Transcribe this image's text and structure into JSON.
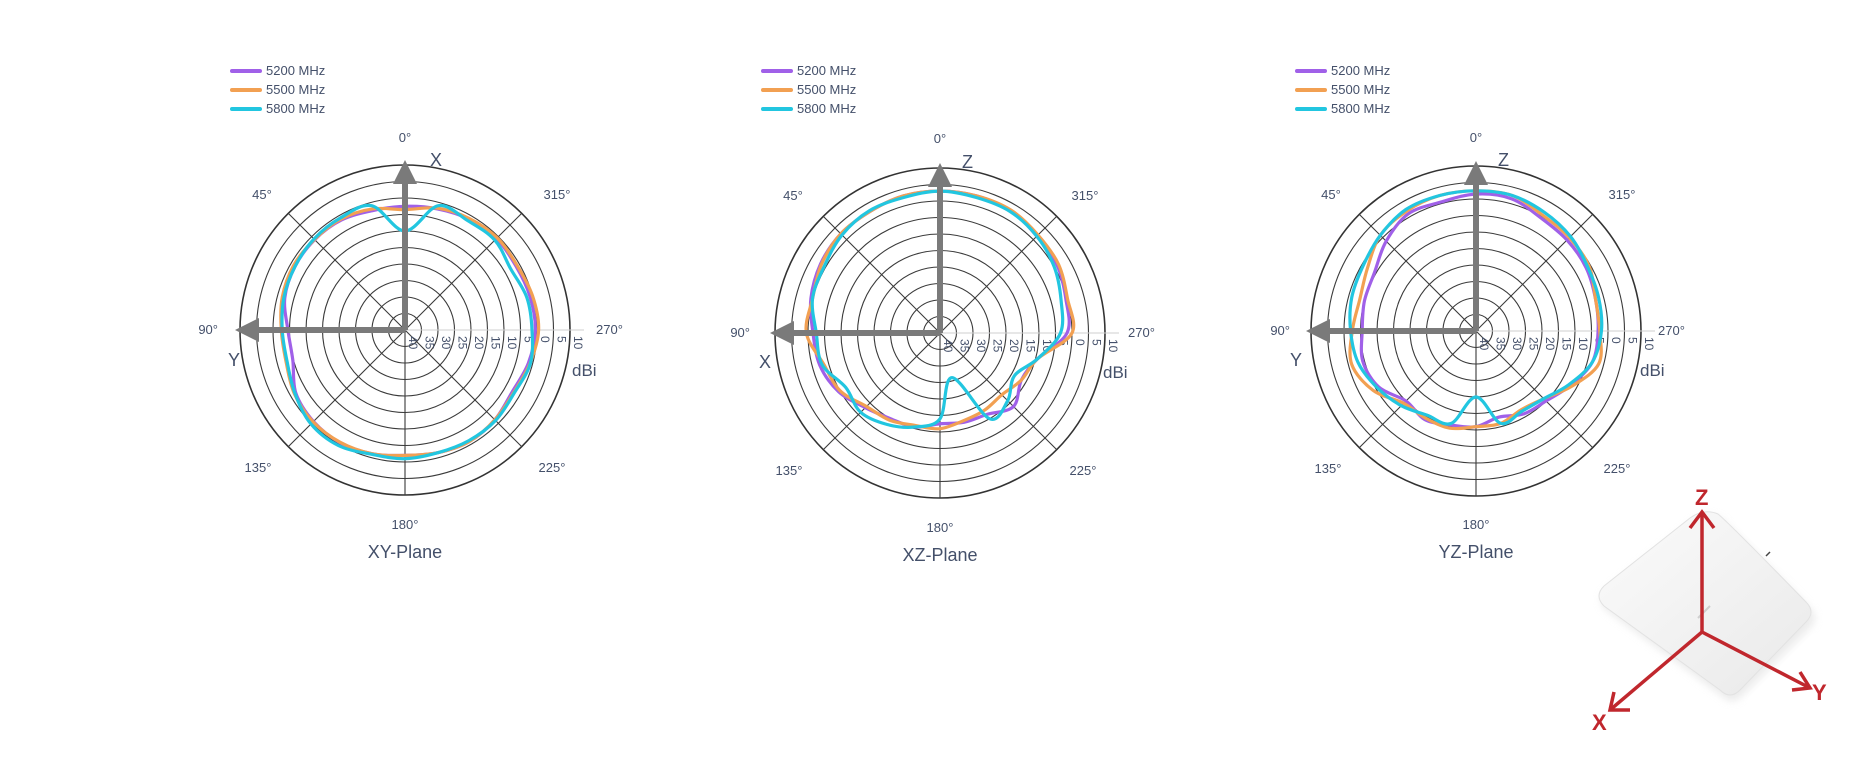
{
  "legend": [
    {
      "name": "5200 MHz",
      "color": "#a060e8"
    },
    {
      "name": "5500 MHz",
      "color": "#f2a052"
    },
    {
      "name": "5800 MHz",
      "color": "#22c6e0"
    }
  ],
  "angle_labels": [
    "0°",
    "315°",
    "270°",
    "225°",
    "180°",
    "135°",
    "90°",
    "45°"
  ],
  "radial_labels": [
    "10",
    "5",
    "0",
    "5",
    "10",
    "15",
    "20",
    "25",
    "30",
    "35",
    "40"
  ],
  "unit": "dBi",
  "coordinate_diagram": {
    "labels": [
      "Z",
      "Y",
      "X"
    ],
    "color": "#c0272d"
  },
  "chart_data": [
    {
      "type": "polar-line",
      "title": "XY-Plane",
      "up_axis": "X",
      "left_axis": "Y",
      "r_unit": "dBi",
      "r_range": [
        -40,
        10
      ],
      "r_ticks": [
        10,
        5,
        0,
        -5,
        -10,
        -15,
        -20,
        -25,
        -30,
        -35,
        -40
      ],
      "theta_direction": "counterclockwise, 0° at top",
      "theta": [
        0,
        15,
        30,
        45,
        60,
        75,
        90,
        105,
        120,
        135,
        150,
        165,
        180,
        195,
        210,
        225,
        240,
        255,
        270,
        285,
        300,
        315,
        330,
        345
      ],
      "series": [
        {
          "name": "5200 MHz",
          "values": [
            -2.5,
            -2.5,
            -1.5,
            -1.3,
            -1.5,
            -2.3,
            -4.5,
            -4.8,
            -1.8,
            -0.8,
            -0.6,
            -1.2,
            -2,
            -1.5,
            -1,
            -1.5,
            -2.5,
            -1.3,
            -0.5,
            -0.8,
            -1.2,
            -0.8,
            -1.2,
            -2
          ]
        },
        {
          "name": "5500 MHz",
          "values": [
            -3.5,
            -2.0,
            -1.2,
            -1.2,
            -1.0,
            -1.5,
            -2.5,
            -2.7,
            -1.3,
            -0.6,
            -0.7,
            -1.2,
            -2,
            -1.5,
            -1,
            -1.5,
            -2,
            -0.8,
            0.5,
            0,
            -0.8,
            -0.5,
            -1.0,
            -1.8
          ]
        },
        {
          "name": "5800 MHz",
          "values": [
            -10,
            -1.0,
            -0.8,
            -1.0,
            -1.5,
            -2.0,
            -2.8,
            -3.0,
            -1.5,
            0.3,
            0.4,
            -1.0,
            -1.0,
            -1.5,
            -1.3,
            -1.2,
            -1.8,
            -0.7,
            -1.5,
            -1.8,
            -3.0,
            -1.5,
            -1.8,
            -1.0
          ]
        }
      ]
    },
    {
      "type": "polar-line",
      "title": "XZ-Plane",
      "up_axis": "Z",
      "left_axis": "X",
      "r_unit": "dBi",
      "r_range": [
        -40,
        10
      ],
      "r_ticks": [
        10,
        5,
        0,
        -5,
        -10,
        -15,
        -20,
        -25,
        -30,
        -35,
        -40
      ],
      "theta_direction": "counterclockwise, 0° at top",
      "theta": [
        0,
        15,
        30,
        45,
        60,
        75,
        90,
        105,
        120,
        135,
        150,
        165,
        180,
        195,
        210,
        225,
        240,
        255,
        270,
        285,
        300,
        315,
        330,
        345
      ],
      "series": [
        {
          "name": "5200 MHz",
          "values": [
            3,
            3,
            2.5,
            2.5,
            1.8,
            0.5,
            -1.5,
            -2.3,
            -4.5,
            -8,
            -10,
            -10.5,
            -12.5,
            -12,
            -11.5,
            -8.5,
            -11.5,
            -9.5,
            -1.5,
            -0.5,
            1,
            1.5,
            2.8,
            3
          ]
        },
        {
          "name": "5500 MHz",
          "values": [
            3,
            3,
            2.5,
            2.5,
            1.5,
            0,
            0.5,
            -3.5,
            -5,
            -8.5,
            -9.5,
            -11,
            -11,
            -12.5,
            -13,
            -13.5,
            -11.5,
            -9.5,
            0,
            0,
            1.5,
            2,
            3,
            3
          ]
        },
        {
          "name": "5800 MHz",
          "values": [
            3,
            2.5,
            2.8,
            2.0,
            0.5,
            0,
            -2.5,
            -3,
            -7,
            -6,
            -8,
            -10.5,
            -14,
            -26,
            -10,
            -11,
            -14,
            -9.5,
            -3.5,
            -2,
            0,
            1.5,
            2.5,
            2.5
          ]
        }
      ]
    },
    {
      "type": "polar-line",
      "title": "YZ-Plane",
      "up_axis": "Z",
      "left_axis": "Y",
      "r_unit": "dBi",
      "r_range": [
        -40,
        10
      ],
      "r_ticks": [
        10,
        5,
        0,
        -5,
        -10,
        -15,
        -20,
        -25,
        -30,
        -35,
        -40
      ],
      "theta_direction": "counterclockwise, 0° at top",
      "theta": [
        0,
        15,
        30,
        45,
        60,
        75,
        90,
        105,
        120,
        135,
        150,
        165,
        180,
        195,
        210,
        225,
        240,
        255,
        270,
        285,
        300,
        315,
        330,
        345
      ],
      "series": [
        {
          "name": "5200 MHz",
          "values": [
            1.5,
            0.5,
            1,
            -1.5,
            -4.5,
            -5,
            -5.5,
            -4.5,
            -6,
            -10,
            -9,
            -10.5,
            -11,
            -13,
            -11,
            -10,
            -7,
            -3.5,
            -3,
            -2.5,
            -1.5,
            -1,
            -0.5,
            1.5
          ]
        },
        {
          "name": "5500 MHz",
          "values": [
            2.5,
            2.5,
            2,
            1,
            -2,
            -3.5,
            -2.5,
            -1,
            -4,
            -9,
            -9.5,
            -9.5,
            -11,
            -11,
            -12.5,
            -11,
            -6.5,
            -1.5,
            -2.5,
            -2.5,
            -0.5,
            0,
            0.5,
            2.5
          ]
        },
        {
          "name": "5800 MHz",
          "values": [
            2.5,
            2.5,
            2.5,
            1,
            -0.5,
            -1,
            -2,
            -3,
            -5.5,
            -8,
            -10.5,
            -11,
            -20,
            -11,
            -12,
            -11,
            -7.5,
            -3.5,
            -2,
            -1.5,
            -1,
            0.5,
            1.5,
            2.5
          ]
        }
      ]
    }
  ]
}
